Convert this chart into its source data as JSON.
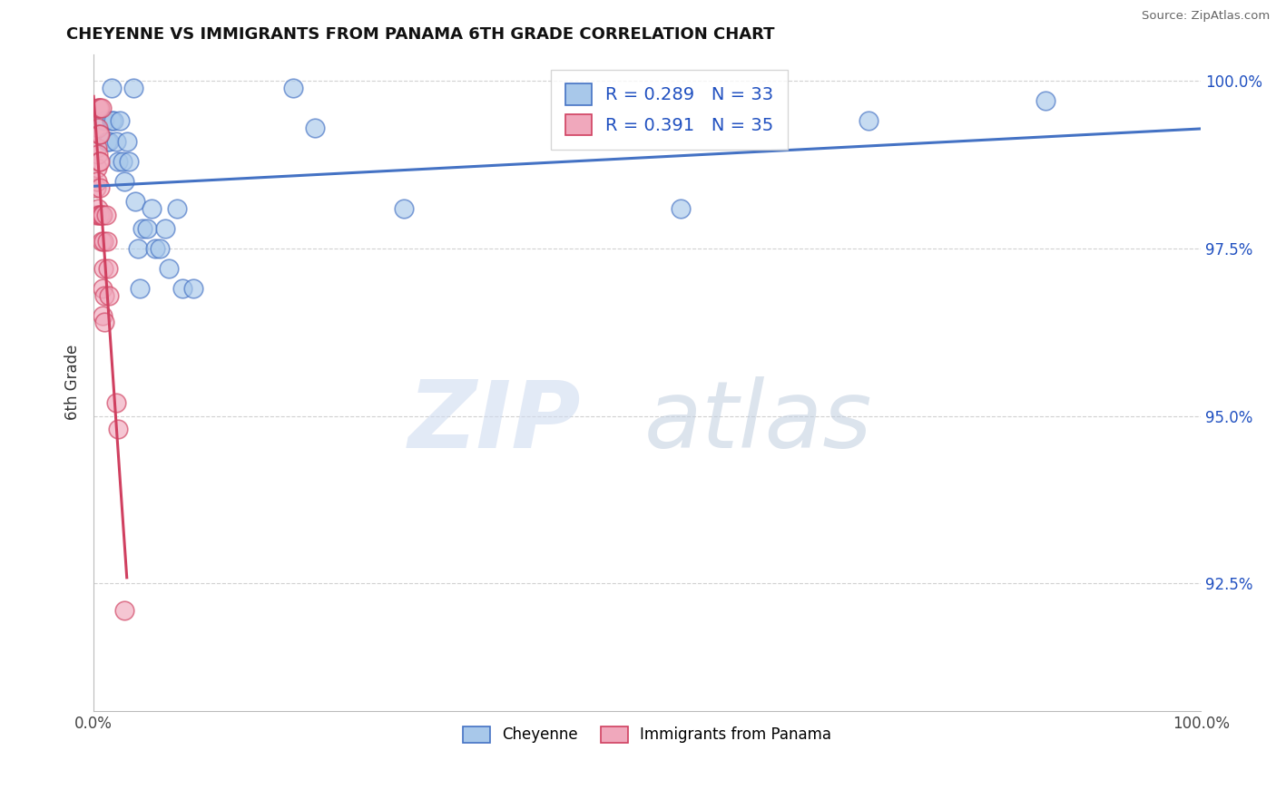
{
  "title": "CHEYENNE VS IMMIGRANTS FROM PANAMA 6TH GRADE CORRELATION CHART",
  "source": "Source: ZipAtlas.com",
  "ylabel": "6th Grade",
  "xlim": [
    0.0,
    1.0
  ],
  "ylim": [
    0.906,
    1.004
  ],
  "yticks": [
    0.925,
    0.95,
    0.975,
    1.0
  ],
  "ytick_labels": [
    "92.5%",
    "95.0%",
    "97.5%",
    "100.0%"
  ],
  "xtick_positions": [
    0.0,
    0.25,
    0.5,
    0.75,
    1.0
  ],
  "xtick_labels": [
    "0.0%",
    "",
    "",
    "",
    "100.0%"
  ],
  "blue_R": 0.289,
  "blue_N": 33,
  "pink_R": 0.391,
  "pink_N": 35,
  "blue_color": "#A8C8EA",
  "pink_color": "#F0A8BC",
  "blue_edge_color": "#4472C4",
  "pink_edge_color": "#D04060",
  "blue_line_color": "#4472C4",
  "pink_line_color": "#D04060",
  "blue_x": [
    0.01,
    0.012,
    0.014,
    0.016,
    0.016,
    0.018,
    0.02,
    0.022,
    0.024,
    0.026,
    0.028,
    0.03,
    0.032,
    0.036,
    0.038,
    0.04,
    0.042,
    0.044,
    0.048,
    0.052,
    0.056,
    0.06,
    0.065,
    0.068,
    0.075,
    0.08,
    0.09,
    0.18,
    0.2,
    0.28,
    0.53,
    0.7,
    0.86
  ],
  "blue_y": [
    0.994,
    0.991,
    0.991,
    0.999,
    0.994,
    0.994,
    0.991,
    0.988,
    0.994,
    0.988,
    0.985,
    0.991,
    0.988,
    0.999,
    0.982,
    0.975,
    0.969,
    0.978,
    0.978,
    0.981,
    0.975,
    0.975,
    0.978,
    0.972,
    0.981,
    0.969,
    0.969,
    0.999,
    0.993,
    0.981,
    0.981,
    0.994,
    0.997
  ],
  "pink_x": [
    0.002,
    0.002,
    0.003,
    0.003,
    0.003,
    0.004,
    0.004,
    0.004,
    0.004,
    0.005,
    0.005,
    0.005,
    0.005,
    0.006,
    0.006,
    0.006,
    0.006,
    0.006,
    0.007,
    0.007,
    0.007,
    0.008,
    0.008,
    0.008,
    0.009,
    0.009,
    0.01,
    0.01,
    0.011,
    0.012,
    0.013,
    0.014,
    0.02,
    0.022,
    0.028
  ],
  "pink_y": [
    0.984,
    0.98,
    0.987,
    0.99,
    0.985,
    0.996,
    0.993,
    0.989,
    0.981,
    0.996,
    0.992,
    0.988,
    0.98,
    0.996,
    0.992,
    0.988,
    0.984,
    0.98,
    0.98,
    0.976,
    0.996,
    0.969,
    0.965,
    0.98,
    0.976,
    0.972,
    0.968,
    0.964,
    0.98,
    0.976,
    0.972,
    0.968,
    0.952,
    0.948,
    0.921
  ]
}
